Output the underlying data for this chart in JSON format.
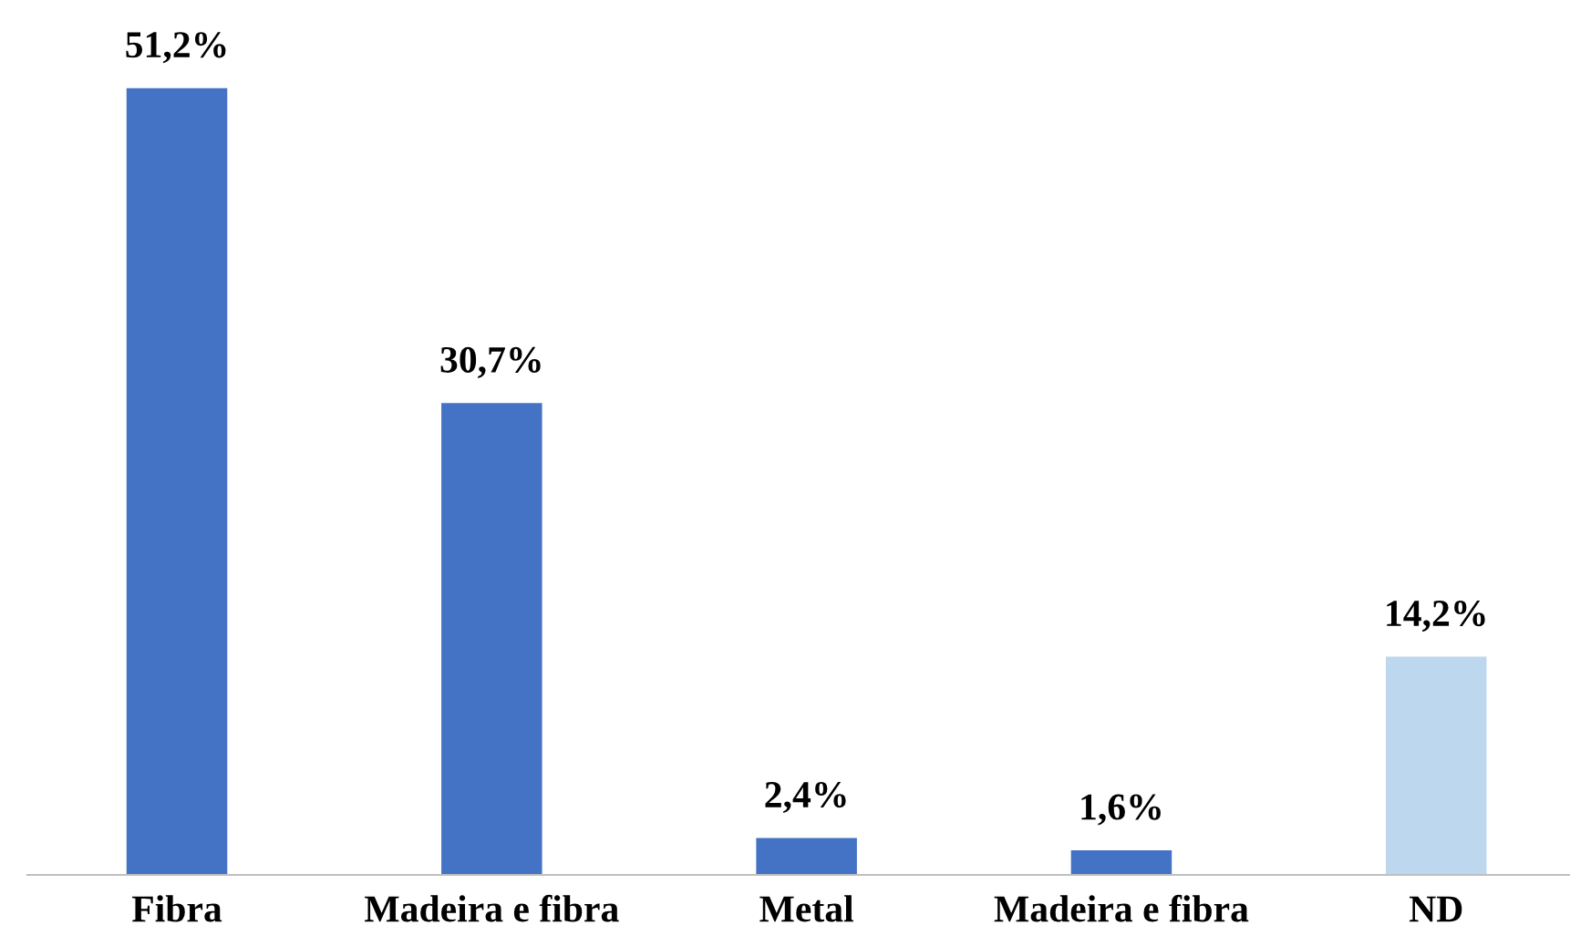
{
  "chart_data": {
    "type": "bar",
    "categories": [
      "Fibra",
      "Madeira e fibra",
      "Metal",
      "Madeira e fibra",
      "ND"
    ],
    "values": [
      51.2,
      30.7,
      2.4,
      1.6,
      14.2
    ],
    "colors": [
      "#4472c4",
      "#4472c4",
      "#4472c4",
      "#4472c4",
      "#bdd7ee"
    ],
    "value_labels": [
      "51,2%",
      "30,7%",
      "2,4%",
      "1,6%",
      "14,2%"
    ],
    "grid": false,
    "legend": false
  }
}
